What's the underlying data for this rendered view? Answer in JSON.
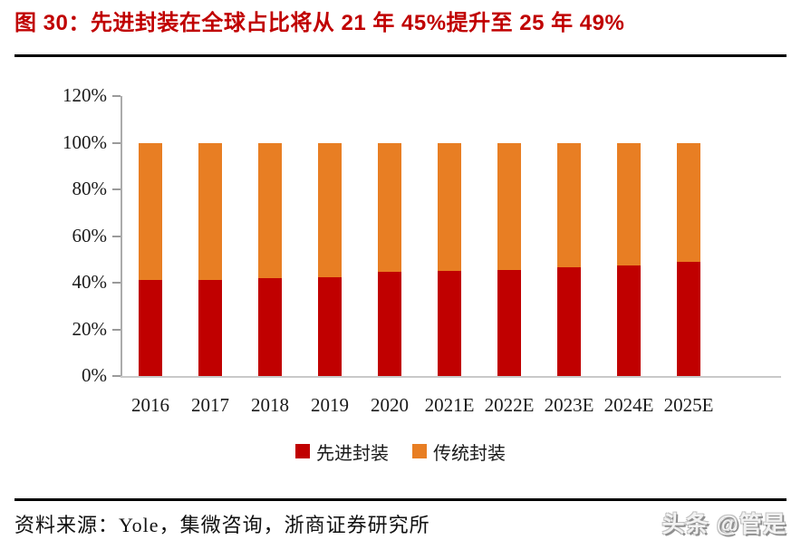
{
  "title": "图 30：先进封装在全球占比将从 21 年 45%提升至 25 年 49%",
  "source_text": "资料来源：Yole，集微咨询，浙商证券研究所",
  "watermark": "头条 @管是",
  "colors": {
    "title_red": "#C00000",
    "advanced_red": "#C00000",
    "traditional_orange": "#E87E23",
    "axis_gray": "#ABABAB",
    "rule_black": "#000000"
  },
  "chart_data": {
    "type": "bar",
    "stacked": true,
    "title": "先进封装在全球占比",
    "xlabel": "",
    "ylabel": "",
    "categories": [
      "2016",
      "2017",
      "2018",
      "2019",
      "2020",
      "2021E",
      "2022E",
      "2023E",
      "2024E",
      "2025E"
    ],
    "series": [
      {
        "name": "先进封装",
        "color": "#C00000",
        "values": [
          41,
          41.3,
          42,
          42.5,
          44.5,
          45,
          45.5,
          46.5,
          47.5,
          49
        ]
      },
      {
        "name": "传统封装",
        "color": "#E87E23",
        "values": [
          59,
          58.7,
          58,
          57.5,
          55.5,
          55,
          54.5,
          53.5,
          52.5,
          51
        ]
      }
    ],
    "y_ticks": [
      "0%",
      "20%",
      "40%",
      "60%",
      "80%",
      "100%",
      "120%"
    ],
    "ylim": [
      0,
      120
    ],
    "grid": false,
    "legend_position": "bottom"
  }
}
